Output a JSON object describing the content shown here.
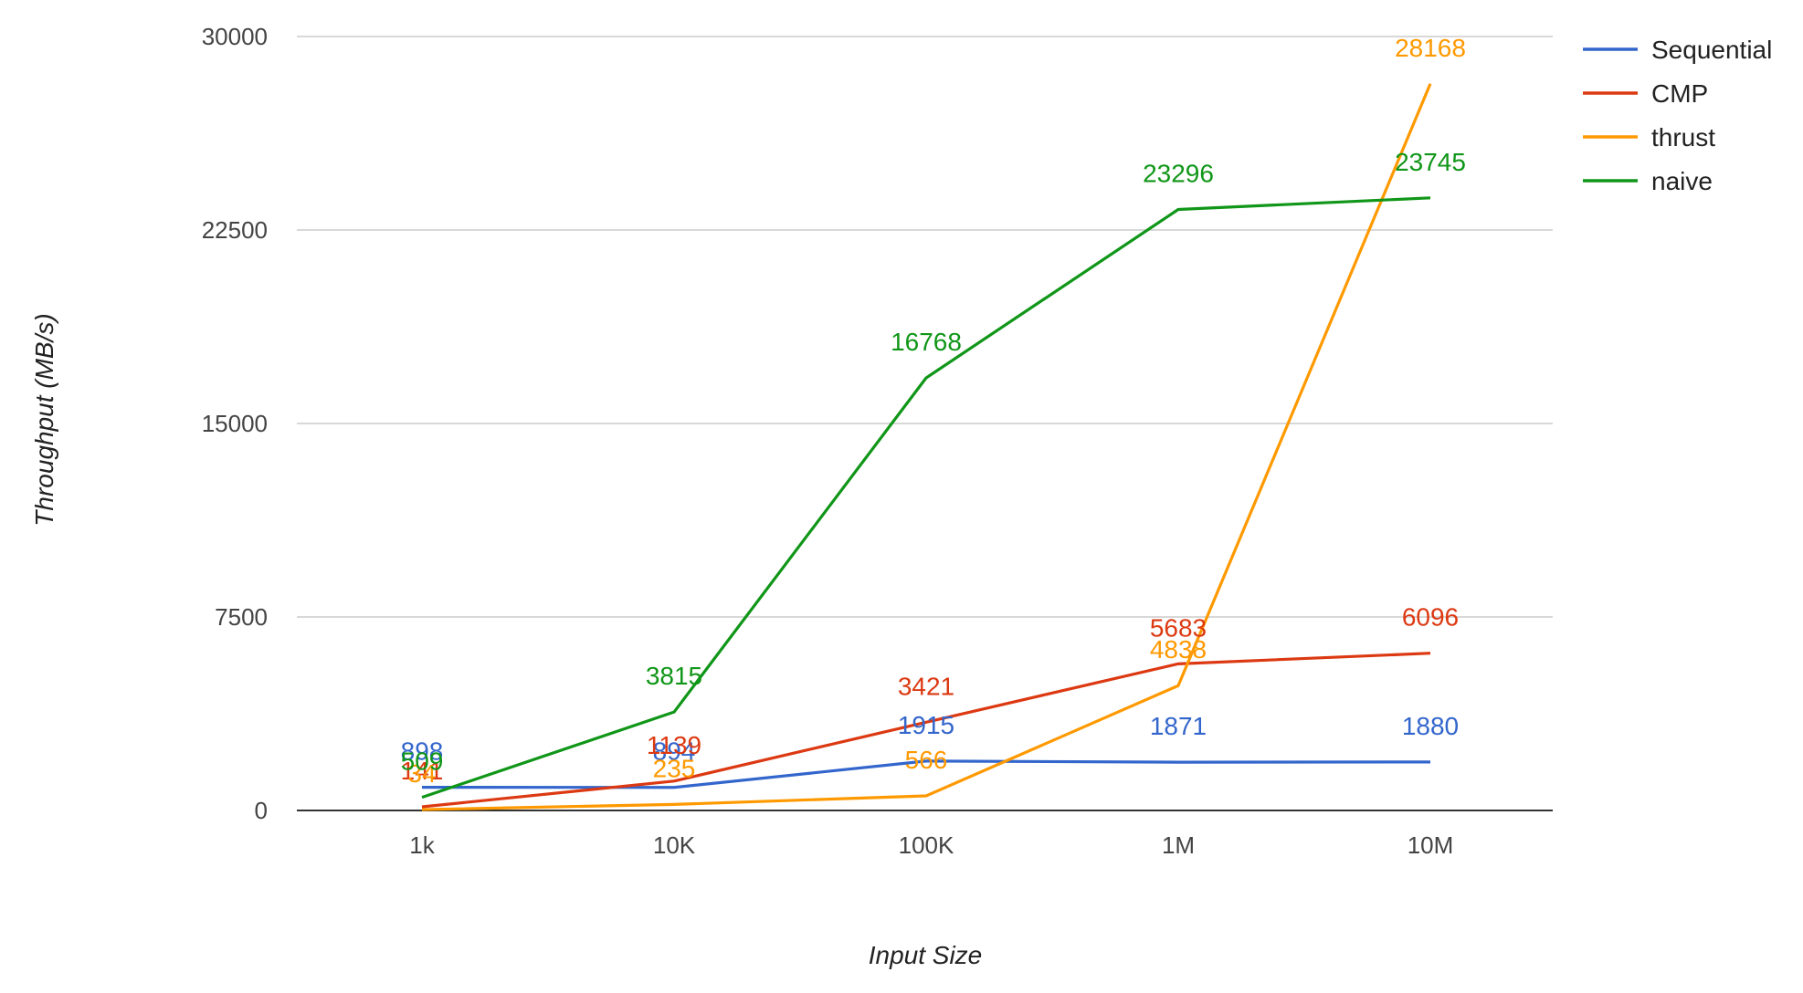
{
  "chart_data": {
    "type": "line",
    "title": "",
    "xlabel": "Input Size",
    "ylabel": "Throughput (MB/s)",
    "categories": [
      "1k",
      "10K",
      "100K",
      "1M",
      "10M"
    ],
    "ylim": [
      0,
      30000
    ],
    "yticks": [
      "0",
      "7500",
      "15000",
      "22500",
      "30000"
    ],
    "ytick_values": [
      0,
      7500,
      15000,
      22500,
      30000
    ],
    "grid": true,
    "legend": "right",
    "series": [
      {
        "name": "Sequential",
        "color": "#3366cc",
        "values": [
          898,
          894,
          1915,
          1871,
          1880
        ],
        "labels": [
          "898",
          "894",
          "1915",
          "1871",
          "1880"
        ]
      },
      {
        "name": "CMP",
        "color": "#dc3912",
        "values": [
          141,
          1139,
          3421,
          5683,
          6096
        ],
        "labels": [
          "141",
          "1139",
          "3421",
          "5683",
          "6096"
        ]
      },
      {
        "name": "thrust",
        "color": "#ff9900",
        "values": [
          34,
          235,
          566,
          4838,
          28168
        ],
        "labels": [
          "34",
          "235",
          "566",
          "4838",
          "28168"
        ]
      },
      {
        "name": "naive",
        "color": "#109618",
        "values": [
          509,
          3815,
          16768,
          23296,
          23745
        ],
        "labels": [
          "509",
          "3815",
          "16768",
          "23296",
          "23745"
        ]
      }
    ]
  }
}
